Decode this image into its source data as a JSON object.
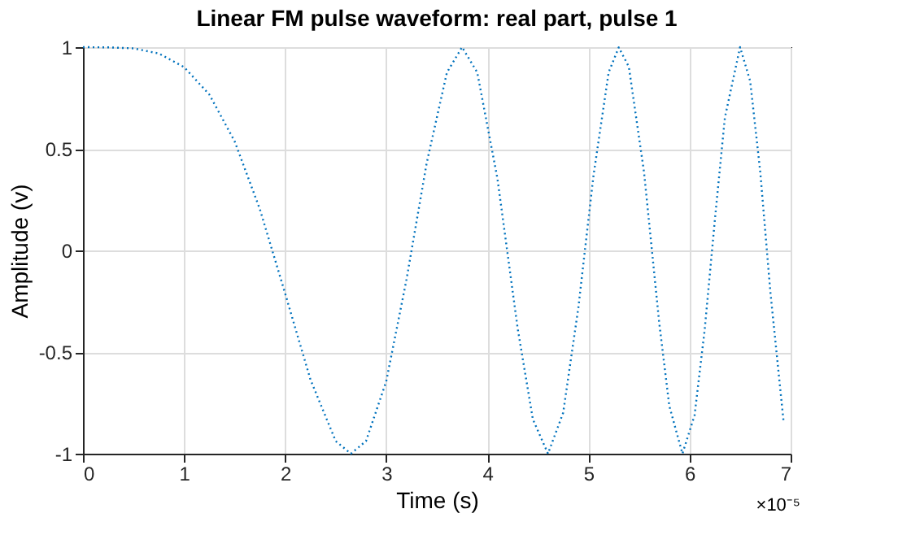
{
  "chart_data": {
    "type": "line",
    "title": "Linear FM pulse waveform: real part, pulse 1",
    "xlabel": "Time (s)",
    "ylabel": "Amplitude (v)",
    "x": [
      0,
      0.25,
      0.5,
      0.75,
      1,
      1.25,
      1.5,
      1.75,
      2,
      2.25,
      2.5,
      2.65,
      2.8,
      3.0,
      3.2,
      3.4,
      3.6,
      3.75,
      3.9,
      4.1,
      4.3,
      4.45,
      4.6,
      4.75,
      4.9,
      5.05,
      5.2,
      5.3,
      5.4,
      5.55,
      5.7,
      5.8,
      5.93,
      6.05,
      6.15,
      6.25,
      6.35,
      6.5,
      6.6,
      6.7,
      6.8,
      6.93
    ],
    "series": [
      {
        "color": "#0072bd",
        "values": [
          1,
          0.999,
          0.994,
          0.969,
          0.902,
          0.767,
          0.537,
          0.203,
          -0.212,
          -0.635,
          -0.938,
          -1,
          -0.938,
          -0.644,
          -0.144,
          0.43,
          0.875,
          1,
          0.876,
          0.353,
          -0.384,
          -0.83,
          -1,
          -0.799,
          -0.283,
          0.368,
          0.876,
          0.999,
          0.903,
          0.385,
          -0.355,
          -0.765,
          -1,
          -0.811,
          -0.39,
          0.147,
          0.654,
          1,
          0.833,
          0.385,
          -0.206,
          -0.84
        ]
      }
    ],
    "xlim": [
      0,
      7
    ],
    "xticks": [
      0,
      1,
      2,
      3,
      4,
      5,
      6,
      7
    ],
    "ylim": [
      -1,
      1
    ],
    "yticks": [
      -1,
      -0.5,
      0,
      0.5,
      1
    ],
    "grid": true,
    "line_style": "dotted",
    "marker": "none",
    "annotations": [
      "×10⁻⁵"
    ]
  }
}
